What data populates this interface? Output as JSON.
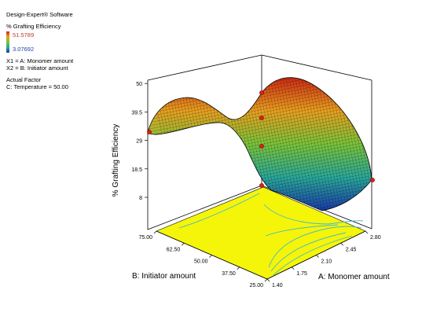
{
  "software": "Design-Expert® Software",
  "response": {
    "name": "% Grafting Efficiency",
    "max_label": "51.5789",
    "min_label": "3.07692",
    "max_color": "#c0392b",
    "min_color": "#1f3fa8"
  },
  "factors": {
    "x1": "X1 = A: Monomer amount",
    "x2": "X2 = B: Initiator amount",
    "actual_title": "Actual Factor",
    "actual": "C: Temperature = 50.00"
  },
  "chart_data": {
    "type": "surface",
    "title": "",
    "zlabel": "% Grafting Efficiency",
    "xlabel": "A: Monomer amount",
    "ylabel": "B: Initiator amount",
    "x_ticks": [
      "1.40",
      "1.75",
      "2.10",
      "2.45",
      "2.80"
    ],
    "y_ticks": [
      "25.00",
      "37.50",
      "50.00",
      "62.50",
      "75.00"
    ],
    "z_ticks": [
      "8",
      "18.5",
      "29",
      "39.5",
      "50"
    ],
    "x_range": [
      1.4,
      2.8
    ],
    "y_range": [
      25,
      75
    ],
    "z_range": [
      8,
      50
    ],
    "floor_color": "#f5f50a",
    "surface_colors": [
      "#1a3aa8",
      "#2aa89a",
      "#7ac43a",
      "#e9a020",
      "#cc2a14"
    ],
    "design_points": [
      {
        "a": 1.4,
        "b": 75,
        "z": 31
      },
      {
        "a": 2.1,
        "b": 50,
        "z": 41
      },
      {
        "a": 2.1,
        "b": 50,
        "z": 30
      },
      {
        "a": 2.1,
        "b": 50,
        "z": 26
      },
      {
        "a": 2.8,
        "b": 25,
        "z": 13
      },
      {
        "a": 1.4,
        "b": 25,
        "z": 50
      }
    ]
  }
}
